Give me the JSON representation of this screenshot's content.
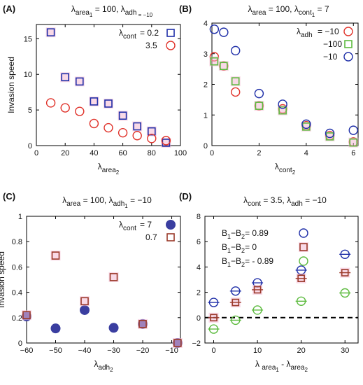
{
  "colors": {
    "blue": "#1f2fa8",
    "red": "#e0332b",
    "green": "#5dbb3f",
    "brown": "#9a3a2a",
    "navy": "#3a3ea0",
    "pink": "#f4b9d3",
    "axis": "#000000"
  },
  "chart_data": [
    {
      "panel": "(A)",
      "type": "scatter",
      "title_parts": [
        "λ",
        "area",
        "1",
        " = 100,  λ",
        "adh",
        " = −10"
      ],
      "xlabel_parts": [
        "λ",
        "area",
        "2"
      ],
      "ylabel": "Invasion speed",
      "xlim": [
        0,
        100
      ],
      "ylim": [
        0,
        17
      ],
      "xticks": [
        0,
        20,
        40,
        60,
        80,
        100
      ],
      "yticks": [
        0,
        5,
        10,
        15
      ],
      "legend_title": "λcont",
      "series": [
        {
          "name": "= 0.2",
          "marker": "square",
          "color": "#1f2fa8",
          "x": [
            10,
            20,
            30,
            40,
            50,
            60,
            70,
            80,
            90
          ],
          "y": [
            15.9,
            9.6,
            9.0,
            6.2,
            5.9,
            4.2,
            2.7,
            2.0,
            0.4
          ]
        },
        {
          "name": "3.5",
          "marker": "circle",
          "color": "#e0332b",
          "x": [
            10,
            20,
            30,
            40,
            50,
            60,
            70,
            80,
            90
          ],
          "y": [
            6.0,
            5.3,
            4.8,
            3.1,
            2.5,
            1.8,
            1.4,
            1.0,
            0.7
          ]
        }
      ]
    },
    {
      "panel": "(B)",
      "type": "scatter",
      "title_parts": [
        "λ",
        "area",
        "",
        " = 100,  λ",
        "cont",
        "1",
        " = 7"
      ],
      "xlabel_parts": [
        "λ",
        "cont",
        "2"
      ],
      "ylabel": "",
      "xlim": [
        0,
        6.2
      ],
      "ylim": [
        0,
        4
      ],
      "xticks": [
        0,
        2,
        4,
        6
      ],
      "yticks": [
        0,
        1,
        2,
        3,
        4
      ],
      "legend_title": "λadh",
      "series": [
        {
          "name": "= −10",
          "marker": "circle",
          "color": "#e0332b",
          "x": [
            0.1,
            0.5,
            1,
            2,
            3,
            4,
            5,
            6
          ],
          "y": [
            2.9,
            2.6,
            1.75,
            1.3,
            1.2,
            0.65,
            0.33,
            0.12
          ]
        },
        {
          "name": "−100",
          "marker": "square",
          "color": "#5dbb3f",
          "x": [
            0.1,
            0.5,
            1,
            2,
            3,
            4,
            5,
            6
          ],
          "y": [
            2.75,
            2.6,
            2.1,
            1.3,
            1.15,
            0.62,
            0.3,
            0.1
          ]
        },
        {
          "name": "−10",
          "marker": "circle",
          "color": "#1f2fa8",
          "x": [
            0.1,
            0.5,
            1,
            2,
            3,
            4,
            5,
            6
          ],
          "y": [
            3.8,
            3.7,
            3.1,
            1.7,
            1.35,
            0.7,
            0.4,
            0.5
          ]
        }
      ]
    },
    {
      "panel": "(C)",
      "type": "scatter",
      "title_parts": [
        "λ",
        "area",
        "",
        " = 100,  λ",
        "adh",
        "1",
        " = −10"
      ],
      "xlabel_parts": [
        "λ",
        "adh",
        "2"
      ],
      "ylabel": "Invasion speed",
      "xlim": [
        -60,
        -7
      ],
      "ylim": [
        0,
        1
      ],
      "xticks": [
        -60,
        -50,
        -40,
        -30,
        -20,
        -10
      ],
      "yticks": [
        0,
        0.2,
        0.4,
        0.6,
        0.8,
        1
      ],
      "legend_title": "λcont",
      "series": [
        {
          "name": "= 7",
          "marker": "filled-circle",
          "color": "#3a3ea0",
          "x": [
            -60,
            -50,
            -40,
            -30,
            -20,
            -8
          ],
          "y": [
            0.21,
            0.115,
            0.26,
            0.12,
            0.15,
            0.0
          ]
        },
        {
          "name": "0.7",
          "marker": "square",
          "color": "#9a3a2a",
          "x": [
            -60,
            -50,
            -40,
            -30,
            -20,
            -8
          ],
          "y": [
            0.22,
            0.69,
            0.33,
            0.52,
            0.15,
            0.0
          ]
        }
      ]
    },
    {
      "panel": "(D)",
      "type": "scatter",
      "title_parts": [
        "λ",
        "cont",
        "",
        " = 3.5,   λ",
        "adh",
        "",
        " = −10"
      ],
      "xlabel_parts": [
        "λ ",
        "area",
        "1",
        " - λ",
        "area",
        "2"
      ],
      "ylabel": "",
      "xlim": [
        -2,
        33
      ],
      "ylim": [
        -2,
        8
      ],
      "xticks": [
        0,
        10,
        20,
        30
      ],
      "yticks": [
        -2,
        0,
        2,
        4,
        6,
        8
      ],
      "dashed_zero_line": true,
      "legend_lines": [
        [
          "B",
          "1",
          "−B",
          "2",
          "= 0.89"
        ],
        [
          "B",
          "1",
          "−B",
          "2",
          "= 0"
        ],
        [
          "B",
          "1",
          "−B",
          "2",
          "= - 0.89"
        ]
      ],
      "series": [
        {
          "name": "= 0.89",
          "marker": "circle-line",
          "color": "#1f2fa8",
          "x": [
            0,
            5,
            10,
            20,
            30
          ],
          "y": [
            1.2,
            2.1,
            2.75,
            3.75,
            5.0
          ]
        },
        {
          "name": "= 0",
          "marker": "square-line",
          "color": "#9a3a2a",
          "x": [
            0,
            5,
            10,
            20,
            30
          ],
          "y": [
            0.0,
            1.2,
            2.2,
            3.1,
            3.55
          ]
        },
        {
          "name": "= - 0.89",
          "marker": "circle-line",
          "color": "#5dbb3f",
          "x": [
            0,
            5,
            10,
            20,
            30
          ],
          "y": [
            -0.9,
            -0.2,
            0.6,
            1.3,
            1.95
          ]
        }
      ]
    }
  ]
}
